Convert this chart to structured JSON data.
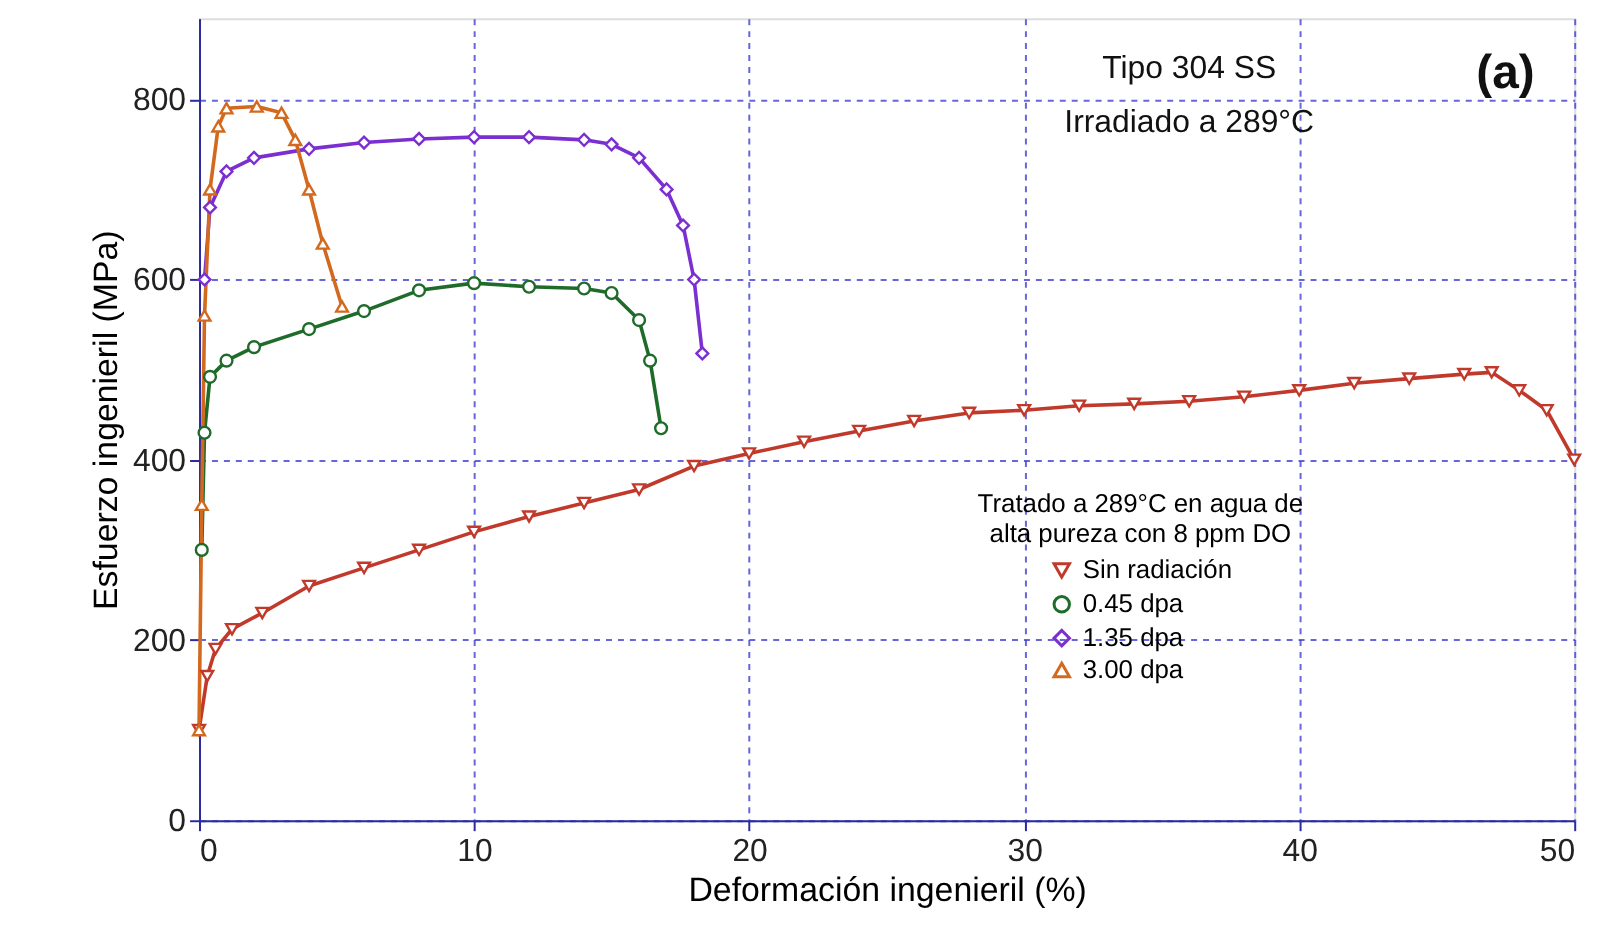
{
  "chart_data": {
    "type": "line",
    "xlabel": "Deformación ingenieril (%)",
    "ylabel": "Esfuerzo ingenieril (MPa)",
    "legend_title": "Tratado a 289°C en agua de alta pureza con 8 ppm DO",
    "annotations": [
      "Tipo 304 SS",
      "Irradiado a 289°C",
      "(a)"
    ],
    "xlim": [
      0,
      50
    ],
    "xticks": [
      0,
      10,
      20,
      30,
      40,
      50
    ],
    "ylim": [
      0,
      890
    ],
    "yticks": [
      0,
      200,
      400,
      600,
      800
    ],
    "grid": true,
    "legend": "bottom right",
    "line_style": "solid",
    "series": [
      {
        "name": "Sin radiación",
        "color": "#c0392b",
        "marker": "triangle-down",
        "x": [
          0,
          0.3,
          0.6,
          1.2,
          2.3,
          4,
          6,
          8,
          10,
          12,
          14,
          16,
          18,
          20,
          22,
          24,
          26,
          28,
          30,
          32,
          34,
          36,
          38,
          40,
          42,
          44,
          46,
          47,
          48,
          49,
          50
        ],
        "values": [
          100,
          160,
          190,
          212,
          230,
          260,
          280,
          300,
          320,
          337,
          352,
          367,
          393,
          407,
          420,
          432,
          443,
          452,
          455,
          460,
          462,
          465,
          470,
          477,
          485,
          490,
          495,
          497,
          477,
          455,
          400
        ]
      },
      {
        "name": "0.45 dpa",
        "color": "#1e6b2a",
        "marker": "circle",
        "x": [
          0.1,
          0.2,
          0.4,
          1,
          2,
          4,
          6,
          8,
          10,
          12,
          14,
          15,
          16,
          16.4,
          16.8
        ],
        "values": [
          300,
          430,
          492,
          510,
          525,
          545,
          565,
          588,
          596,
          592,
          590,
          585,
          555,
          510,
          435
        ]
      },
      {
        "name": "1.35 dpa",
        "color": "#7b2fd1",
        "marker": "diamond",
        "x": [
          0.2,
          0.4,
          1,
          2,
          4,
          6,
          8,
          10,
          12,
          14,
          15,
          16,
          17,
          17.6,
          18,
          18.3
        ],
        "values": [
          600,
          680,
          720,
          735,
          745,
          752,
          756,
          758,
          758,
          755,
          750,
          735,
          700,
          660,
          600,
          518
        ]
      },
      {
        "name": "3.00 dpa",
        "color": "#d2691e",
        "marker": "triangle",
        "x": [
          0,
          0.1,
          0.2,
          0.4,
          0.7,
          1,
          2.1,
          3,
          3.5,
          4,
          4.5,
          5.2
        ],
        "values": [
          100,
          350,
          560,
          700,
          770,
          790,
          792,
          785,
          755,
          700,
          640,
          570
        ]
      }
    ]
  }
}
